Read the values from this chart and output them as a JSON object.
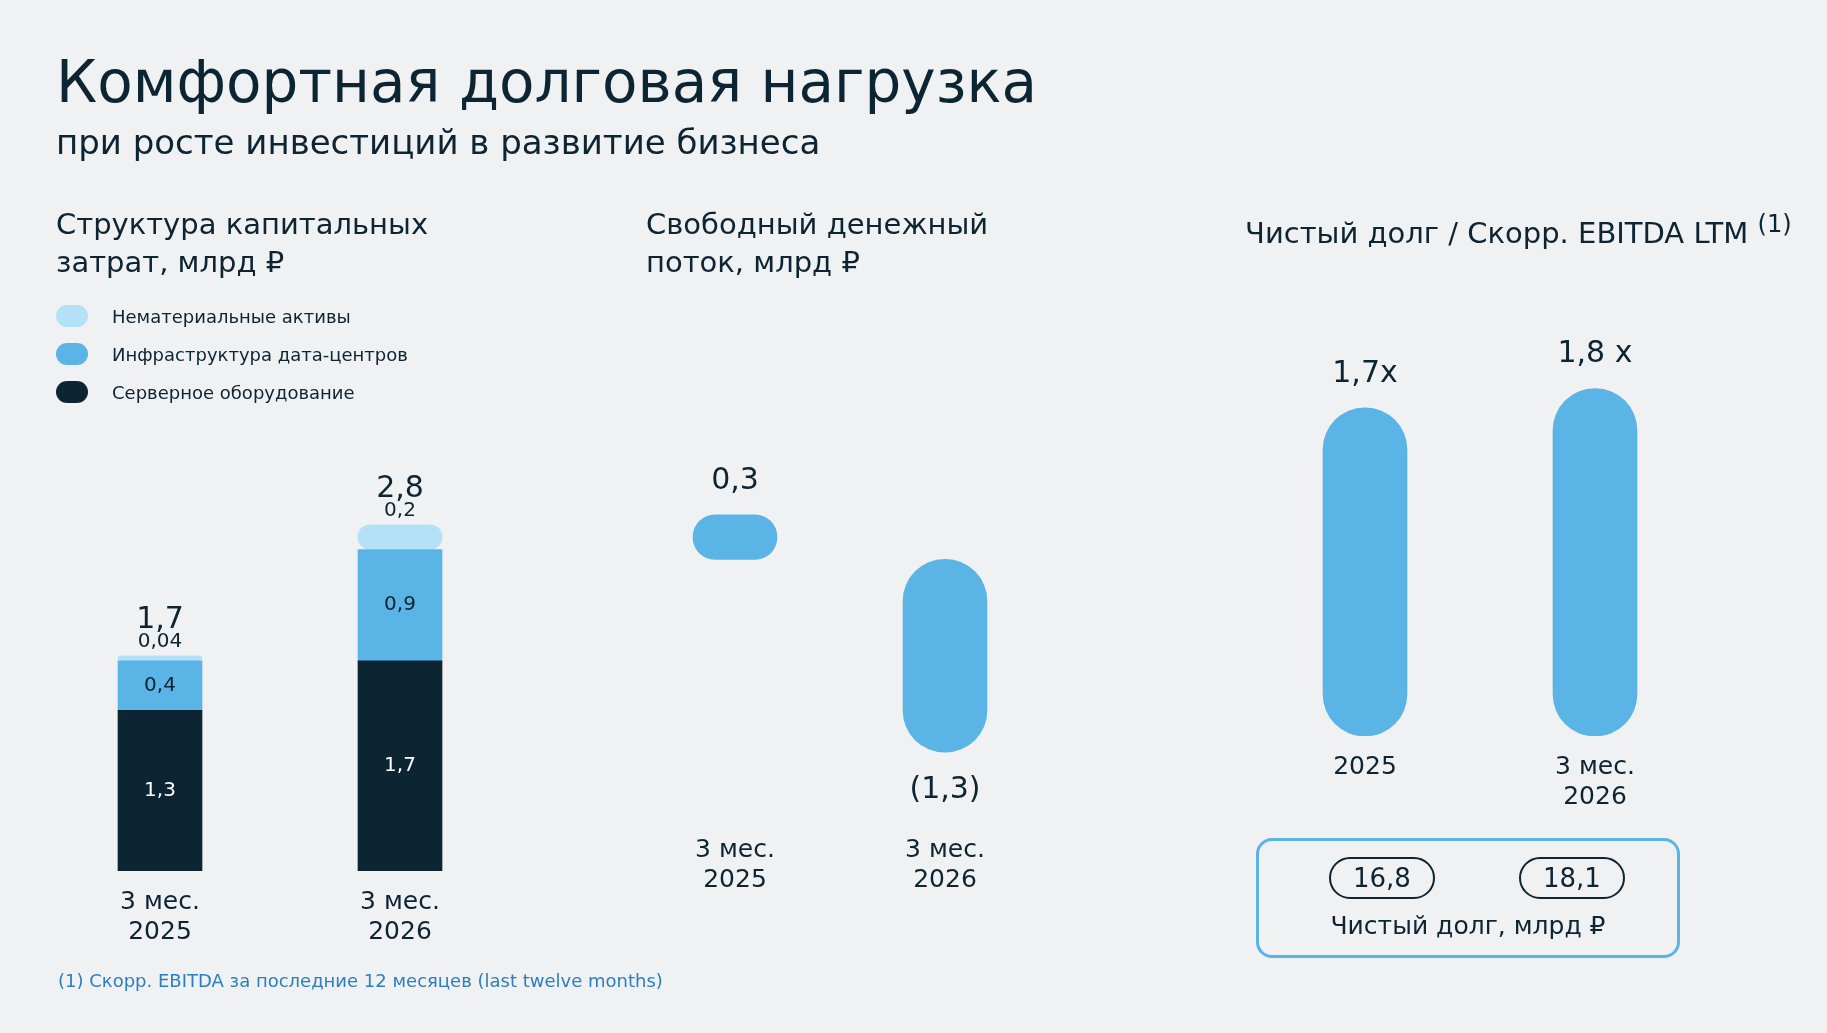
{
  "chart_data": [
    {
      "type": "bar",
      "title": "Структура капитальных затрат, млрд ₽",
      "annotations": [
        "Комфортная долговая нагрузка",
        "при росте инвестиций в развитие бизнеса",
        "(1) Скорр. EBITDA за последние 12 месяцев (last twelve months)"
      ],
      "categories": [
        "3 мес. 2025",
        "3 мес. 2026"
      ],
      "stacked": true,
      "legend": "top left",
      "tick_labels": "x",
      "series": [
        {
          "name": "Серверное оборудование",
          "color": "#0d2433",
          "values": [
            1.3,
            1.7
          ],
          "value_labels": [
            "1,3",
            "1,7"
          ]
        },
        {
          "name": "Инфраструктура дата-центров",
          "color": "#5ab4e6",
          "values": [
            0.4,
            0.9
          ],
          "value_labels": [
            "0,4",
            "0,9"
          ]
        },
        {
          "name": "Нематериальные активы",
          "color": "#b5e1f8",
          "values": [
            0.04,
            0.2
          ],
          "value_labels": [
            "0,04",
            "0,2"
          ]
        }
      ],
      "totals": [
        "1,7",
        "2,8"
      ]
    },
    {
      "type": "bar",
      "title": "Свободный денежный поток, млрд ₽",
      "categories": [
        "3 мес. 2025",
        "3 мес. 2026"
      ],
      "tick_labels": "x",
      "color": "#5ab4e6",
      "values": [
        0.3,
        -1.3
      ],
      "value_labels": [
        "0,3",
        "(1,3)"
      ]
    },
    {
      "type": "bar",
      "title": "Чистый долг / Скорр. EBITDA LTM $^{(1)}$",
      "categories": [
        "2025",
        "3 мес. 2026"
      ],
      "tick_labels": "x",
      "color": "#5ab4e6",
      "values": [
        1.7,
        1.8
      ],
      "value_labels": [
        "1,7x",
        "1,8 x"
      ],
      "annotations": [
        "16,8",
        "18,1",
        "Чистый долг, млрд ₽"
      ]
    }
  ]
}
